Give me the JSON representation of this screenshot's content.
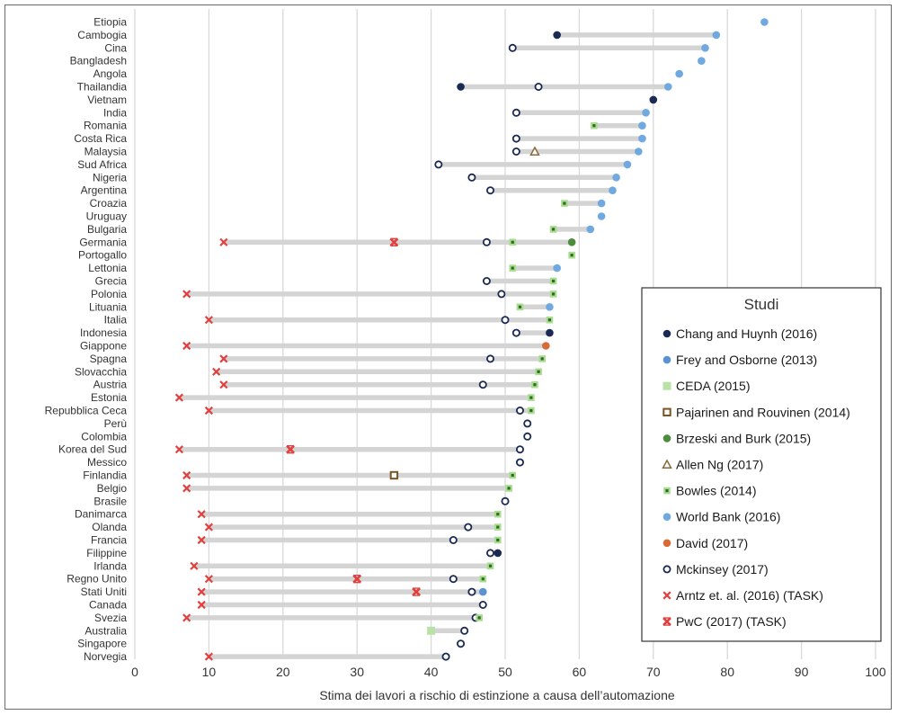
{
  "chart_data": {
    "type": "dot-range",
    "title": "",
    "xlabel": "Stima dei lavori  a rischio di estinzione  a causa dell’automazione",
    "ylabel": "",
    "xlim": [
      0,
      100
    ],
    "xticks": [
      0,
      10,
      20,
      30,
      40,
      50,
      60,
      70,
      80,
      90,
      100
    ],
    "grid": "vertical",
    "legend_title": "Studi",
    "legend_position": "bottom-right",
    "studies": [
      {
        "key": "chang",
        "name": "Chang and Huynh (2016)",
        "marker": "filled-circle",
        "color": "#1b2a52"
      },
      {
        "key": "frey",
        "name": "Frey and Osborne (2013)",
        "marker": "filled-circle",
        "color": "#5b93d1"
      },
      {
        "key": "ceda",
        "name": "CEDA (2015)",
        "marker": "square",
        "color": "#b9e3a6"
      },
      {
        "key": "pajarinen",
        "name": "Pajarinen and Rouvinen (2014)",
        "marker": "hollow-square",
        "color": "#7a5520"
      },
      {
        "key": "brzeski",
        "name": "Brzeski and Burk (2015)",
        "marker": "filled-circle",
        "color": "#4c8c3a"
      },
      {
        "key": "allen",
        "name": "Allen Ng (2017)",
        "marker": "hollow-triangle",
        "color": "#8a6a3a"
      },
      {
        "key": "bowles",
        "name": "Bowles (2014)",
        "marker": "bowles-square",
        "color": "#a9dc8f"
      },
      {
        "key": "worldbank",
        "name": "World Bank (2016)",
        "marker": "filled-circle",
        "color": "#6fa9e0"
      },
      {
        "key": "david",
        "name": "David (2017)",
        "marker": "filled-circle",
        "color": "#d86a37"
      },
      {
        "key": "mckinsey",
        "name": "Mckinsey (2017)",
        "marker": "hollow-circle",
        "color": "#1b2a52"
      },
      {
        "key": "arntz",
        "name": "Arntz et. al. (2016) (TASK)",
        "marker": "x",
        "color": "#e0413f"
      },
      {
        "key": "pwc",
        "name": "PwC (2017) (TASK)",
        "marker": "x-bold",
        "color": "#e0413f"
      }
    ],
    "countries": [
      {
        "name": "Etiopia",
        "points": [
          {
            "study": "worldbank",
            "value": 85
          }
        ]
      },
      {
        "name": "Cambogia",
        "points": [
          {
            "study": "chang",
            "value": 57
          },
          {
            "study": "worldbank",
            "value": 78.5
          }
        ]
      },
      {
        "name": "Cina",
        "points": [
          {
            "study": "mckinsey",
            "value": 51
          },
          {
            "study": "worldbank",
            "value": 77
          }
        ]
      },
      {
        "name": "Bangladesh",
        "points": [
          {
            "study": "worldbank",
            "value": 76.5
          }
        ]
      },
      {
        "name": "Angola",
        "points": [
          {
            "study": "worldbank",
            "value": 73.5
          }
        ]
      },
      {
        "name": "Thailandia",
        "points": [
          {
            "study": "chang",
            "value": 44
          },
          {
            "study": "mckinsey",
            "value": 54.5
          },
          {
            "study": "worldbank",
            "value": 72
          }
        ]
      },
      {
        "name": "Vietnam",
        "points": [
          {
            "study": "chang",
            "value": 70
          }
        ]
      },
      {
        "name": "India",
        "points": [
          {
            "study": "mckinsey",
            "value": 51.5
          },
          {
            "study": "worldbank",
            "value": 69
          }
        ]
      },
      {
        "name": "Romania",
        "points": [
          {
            "study": "bowles",
            "value": 62
          },
          {
            "study": "worldbank",
            "value": 68.5
          }
        ]
      },
      {
        "name": "Costa Rica",
        "points": [
          {
            "study": "mckinsey",
            "value": 51.5
          },
          {
            "study": "worldbank",
            "value": 68.5
          }
        ]
      },
      {
        "name": "Malaysia",
        "points": [
          {
            "study": "mckinsey",
            "value": 51.5
          },
          {
            "study": "allen",
            "value": 54
          },
          {
            "study": "worldbank",
            "value": 68
          }
        ]
      },
      {
        "name": "Sud Africa",
        "points": [
          {
            "study": "mckinsey",
            "value": 41
          },
          {
            "study": "worldbank",
            "value": 66.5
          }
        ]
      },
      {
        "name": "Nigeria",
        "points": [
          {
            "study": "mckinsey",
            "value": 45.5
          },
          {
            "study": "worldbank",
            "value": 65
          }
        ]
      },
      {
        "name": "Argentina",
        "points": [
          {
            "study": "mckinsey",
            "value": 48
          },
          {
            "study": "worldbank",
            "value": 64.5
          }
        ]
      },
      {
        "name": "Croazia",
        "points": [
          {
            "study": "bowles",
            "value": 58
          },
          {
            "study": "worldbank",
            "value": 63
          }
        ]
      },
      {
        "name": "Uruguay",
        "points": [
          {
            "study": "worldbank",
            "value": 63
          }
        ]
      },
      {
        "name": "Bulgaria",
        "points": [
          {
            "study": "bowles",
            "value": 56.5
          },
          {
            "study": "worldbank",
            "value": 61.5
          }
        ]
      },
      {
        "name": "Germania",
        "points": [
          {
            "study": "arntz",
            "value": 12
          },
          {
            "study": "pwc",
            "value": 35
          },
          {
            "study": "mckinsey",
            "value": 47.5
          },
          {
            "study": "bowles",
            "value": 51
          },
          {
            "study": "brzeski",
            "value": 59
          }
        ]
      },
      {
        "name": "Portogallo",
        "points": [
          {
            "study": "bowles",
            "value": 59
          }
        ]
      },
      {
        "name": "Lettonia",
        "points": [
          {
            "study": "bowles",
            "value": 51
          },
          {
            "study": "worldbank",
            "value": 57
          }
        ]
      },
      {
        "name": "Grecia",
        "points": [
          {
            "study": "mckinsey",
            "value": 47.5
          },
          {
            "study": "bowles",
            "value": 56.5
          }
        ]
      },
      {
        "name": "Polonia",
        "points": [
          {
            "study": "arntz",
            "value": 7
          },
          {
            "study": "mckinsey",
            "value": 49.5
          },
          {
            "study": "bowles",
            "value": 56.5
          }
        ]
      },
      {
        "name": "Lituania",
        "points": [
          {
            "study": "bowles",
            "value": 52
          },
          {
            "study": "worldbank",
            "value": 56
          }
        ]
      },
      {
        "name": "Italia",
        "points": [
          {
            "study": "arntz",
            "value": 10
          },
          {
            "study": "mckinsey",
            "value": 50
          },
          {
            "study": "bowles",
            "value": 56
          }
        ]
      },
      {
        "name": "Indonesia",
        "points": [
          {
            "study": "mckinsey",
            "value": 51.5
          },
          {
            "study": "chang",
            "value": 56
          }
        ]
      },
      {
        "name": "Giappone",
        "points": [
          {
            "study": "arntz",
            "value": 7
          },
          {
            "study": "david",
            "value": 55.5
          }
        ]
      },
      {
        "name": "Spagna",
        "points": [
          {
            "study": "arntz",
            "value": 12
          },
          {
            "study": "mckinsey",
            "value": 48
          },
          {
            "study": "bowles",
            "value": 55
          }
        ]
      },
      {
        "name": "Slovacchia",
        "points": [
          {
            "study": "arntz",
            "value": 11
          },
          {
            "study": "bowles",
            "value": 54.5
          }
        ]
      },
      {
        "name": "Austria",
        "points": [
          {
            "study": "arntz",
            "value": 12
          },
          {
            "study": "mckinsey",
            "value": 47
          },
          {
            "study": "bowles",
            "value": 54
          }
        ]
      },
      {
        "name": "Estonia",
        "points": [
          {
            "study": "arntz",
            "value": 6
          },
          {
            "study": "bowles",
            "value": 53.5
          }
        ]
      },
      {
        "name": "Repubblica Ceca",
        "points": [
          {
            "study": "arntz",
            "value": 10
          },
          {
            "study": "mckinsey",
            "value": 52
          },
          {
            "study": "bowles",
            "value": 53.5
          }
        ]
      },
      {
        "name": "Perù",
        "points": [
          {
            "study": "mckinsey",
            "value": 53
          }
        ]
      },
      {
        "name": "Colombia",
        "points": [
          {
            "study": "mckinsey",
            "value": 53
          }
        ]
      },
      {
        "name": "Korea del Sud",
        "points": [
          {
            "study": "arntz",
            "value": 6
          },
          {
            "study": "pwc",
            "value": 21
          },
          {
            "study": "mckinsey",
            "value": 52
          }
        ]
      },
      {
        "name": "Messico",
        "points": [
          {
            "study": "mckinsey",
            "value": 52
          }
        ]
      },
      {
        "name": "Finlandia",
        "points": [
          {
            "study": "arntz",
            "value": 7
          },
          {
            "study": "pajarinen",
            "value": 35
          },
          {
            "study": "bowles",
            "value": 51
          }
        ]
      },
      {
        "name": "Belgio",
        "points": [
          {
            "study": "arntz",
            "value": 7
          },
          {
            "study": "bowles",
            "value": 50.5
          }
        ]
      },
      {
        "name": "Brasile",
        "points": [
          {
            "study": "mckinsey",
            "value": 50
          }
        ]
      },
      {
        "name": "Danimarca",
        "points": [
          {
            "study": "arntz",
            "value": 9
          },
          {
            "study": "bowles",
            "value": 49
          }
        ]
      },
      {
        "name": "Olanda",
        "points": [
          {
            "study": "arntz",
            "value": 10
          },
          {
            "study": "mckinsey",
            "value": 45
          },
          {
            "study": "bowles",
            "value": 49
          }
        ]
      },
      {
        "name": "Francia",
        "points": [
          {
            "study": "arntz",
            "value": 9
          },
          {
            "study": "mckinsey",
            "value": 43
          },
          {
            "study": "bowles",
            "value": 49
          }
        ]
      },
      {
        "name": "Filippine",
        "points": [
          {
            "study": "mckinsey",
            "value": 48
          },
          {
            "study": "chang",
            "value": 49
          }
        ]
      },
      {
        "name": "Irlanda",
        "points": [
          {
            "study": "arntz",
            "value": 8
          },
          {
            "study": "bowles",
            "value": 48
          }
        ]
      },
      {
        "name": "Regno Unito",
        "points": [
          {
            "study": "arntz",
            "value": 10
          },
          {
            "study": "pwc",
            "value": 30
          },
          {
            "study": "mckinsey",
            "value": 43
          },
          {
            "study": "bowles",
            "value": 47
          }
        ]
      },
      {
        "name": "Stati Uniti",
        "points": [
          {
            "study": "arntz",
            "value": 9
          },
          {
            "study": "pwc",
            "value": 38
          },
          {
            "study": "mckinsey",
            "value": 45.5
          },
          {
            "study": "frey",
            "value": 47
          }
        ]
      },
      {
        "name": "Canada",
        "points": [
          {
            "study": "arntz",
            "value": 9
          },
          {
            "study": "mckinsey",
            "value": 47
          }
        ]
      },
      {
        "name": "Svezia",
        "points": [
          {
            "study": "arntz",
            "value": 7
          },
          {
            "study": "mckinsey",
            "value": 46
          },
          {
            "study": "bowles",
            "value": 46.5
          }
        ]
      },
      {
        "name": "Australia",
        "points": [
          {
            "study": "ceda",
            "value": 40
          },
          {
            "study": "mckinsey",
            "value": 44.5
          }
        ]
      },
      {
        "name": "Singapore",
        "points": [
          {
            "study": "mckinsey",
            "value": 44
          }
        ]
      },
      {
        "name": "Norvegia",
        "points": [
          {
            "study": "arntz",
            "value": 10
          },
          {
            "study": "mckinsey",
            "value": 42
          }
        ]
      }
    ]
  }
}
